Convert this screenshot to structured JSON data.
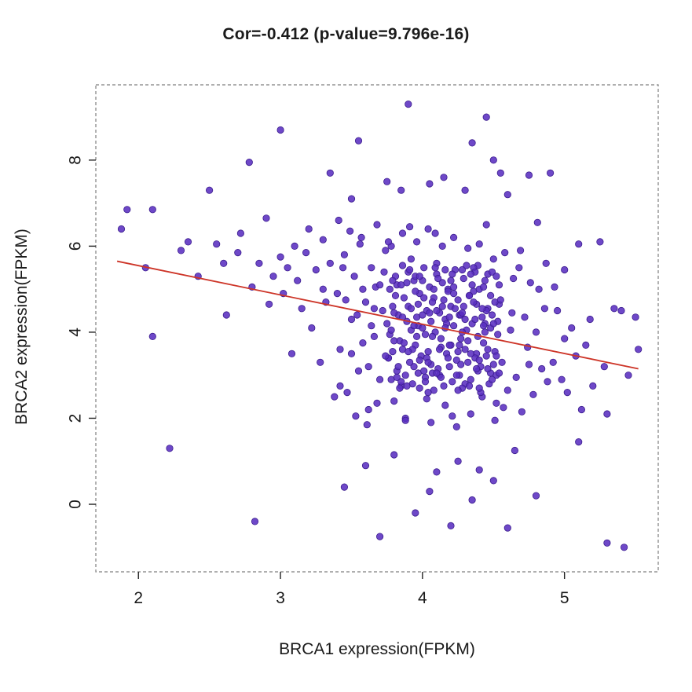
{
  "title": "Cor=-0.412 (p-value=9.796e-16)",
  "chart_data": {
    "type": "scatter",
    "title": "Cor=-0.412 (p-value=9.796e-16)",
    "correlation": -0.412,
    "p_value": "9.796e-16",
    "xlabel": "BRCA1 expression(FPKM)",
    "ylabel": "BRCA2 expression(FPKM)",
    "xlim": [
      1.7,
      5.66
    ],
    "ylim": [
      -1.57,
      9.75
    ],
    "x_ticks": [
      2,
      3,
      4,
      5
    ],
    "y_ticks": [
      0,
      2,
      4,
      6,
      8
    ],
    "grid": false,
    "legend": "none",
    "point_color": "#5a2fc0",
    "point_edge_color": "#3c1d8f",
    "line_color": "#cd3427",
    "regression_line": {
      "x1": 1.85,
      "y1": 5.65,
      "x2": 5.52,
      "y2": 3.15
    },
    "points": [
      [
        1.88,
        6.4
      ],
      [
        1.92,
        6.85
      ],
      [
        2.05,
        5.5
      ],
      [
        2.1,
        6.85
      ],
      [
        2.1,
        3.9
      ],
      [
        2.22,
        1.3
      ],
      [
        2.3,
        5.9
      ],
      [
        2.35,
        6.1
      ],
      [
        2.42,
        5.3
      ],
      [
        2.5,
        7.3
      ],
      [
        2.55,
        6.05
      ],
      [
        2.6,
        5.6
      ],
      [
        2.62,
        4.4
      ],
      [
        2.7,
        5.85
      ],
      [
        2.72,
        6.3
      ],
      [
        2.78,
        7.95
      ],
      [
        2.8,
        5.05
      ],
      [
        2.82,
        -0.4
      ],
      [
        2.85,
        5.6
      ],
      [
        2.9,
        6.65
      ],
      [
        2.92,
        4.65
      ],
      [
        2.95,
        5.3
      ],
      [
        3.0,
        8.7
      ],
      [
        3.0,
        5.75
      ],
      [
        3.02,
        4.9
      ],
      [
        3.05,
        5.5
      ],
      [
        3.08,
        3.5
      ],
      [
        3.1,
        6.0
      ],
      [
        3.12,
        5.2
      ],
      [
        3.15,
        4.55
      ],
      [
        3.18,
        5.85
      ],
      [
        3.2,
        6.4
      ],
      [
        3.22,
        4.1
      ],
      [
        3.25,
        5.45
      ],
      [
        3.28,
        3.3
      ],
      [
        3.3,
        5.0
      ],
      [
        3.3,
        6.15
      ],
      [
        3.32,
        4.7
      ],
      [
        3.35,
        5.6
      ],
      [
        3.38,
        2.5
      ],
      [
        4.92,
        3.3
      ],
      [
        4.95,
        4.5
      ],
      [
        4.98,
        2.9
      ],
      [
        5.0,
        3.85
      ],
      [
        5.0,
        5.45
      ],
      [
        5.02,
        2.6
      ],
      [
        5.05,
        4.1
      ],
      [
        5.08,
        3.45
      ],
      [
        5.1,
        6.05
      ],
      [
        5.12,
        2.2
      ],
      [
        5.15,
        3.7
      ],
      [
        5.18,
        4.3
      ],
      [
        5.2,
        2.75
      ],
      [
        5.25,
        6.1
      ],
      [
        5.28,
        3.2
      ],
      [
        5.3,
        2.1
      ],
      [
        5.35,
        4.55
      ],
      [
        5.4,
        4.5
      ],
      [
        5.45,
        3.0
      ],
      [
        5.5,
        4.35
      ],
      [
        5.52,
        3.6
      ],
      [
        4.9,
        7.7
      ],
      [
        5.3,
        -0.9
      ],
      [
        5.42,
        -1.0
      ],
      [
        5.1,
        1.45
      ],
      [
        3.9,
        9.3
      ],
      [
        4.45,
        9.0
      ],
      [
        3.55,
        8.45
      ],
      [
        4.35,
        8.4
      ],
      [
        3.35,
        7.7
      ],
      [
        4.55,
        7.7
      ],
      [
        4.75,
        7.65
      ],
      [
        3.75,
        7.5
      ],
      [
        4.05,
        7.45
      ],
      [
        4.3,
        7.3
      ],
      [
        3.5,
        7.1
      ],
      [
        4.6,
        7.2
      ],
      [
        4.15,
        7.6
      ],
      [
        3.85,
        7.3
      ],
      [
        4.5,
        8.0
      ],
      [
        3.45,
        0.4
      ],
      [
        3.7,
        -0.75
      ],
      [
        3.95,
        -0.2
      ],
      [
        4.2,
        -0.5
      ],
      [
        4.6,
        -0.55
      ],
      [
        4.05,
        0.3
      ],
      [
        4.35,
        0.1
      ],
      [
        4.5,
        0.55
      ],
      [
        3.6,
        0.9
      ],
      [
        4.1,
        0.75
      ],
      [
        4.8,
        0.2
      ],
      [
        4.25,
        1.0
      ],
      [
        3.8,
        1.15
      ],
      [
        4.65,
        1.25
      ],
      [
        4.4,
        0.8
      ],
      [
        3.4,
        4.9
      ],
      [
        3.42,
        3.6
      ],
      [
        3.45,
        5.8
      ],
      [
        3.47,
        2.6
      ],
      [
        3.5,
        4.3
      ],
      [
        3.52,
        5.3
      ],
      [
        3.55,
        3.1
      ],
      [
        3.57,
        6.2
      ],
      [
        3.6,
        4.7
      ],
      [
        3.62,
        2.2
      ],
      [
        3.64,
        5.5
      ],
      [
        3.66,
        3.9
      ],
      [
        3.68,
        6.5
      ],
      [
        3.7,
        2.9
      ],
      [
        3.72,
        4.5
      ],
      [
        3.74,
        5.9
      ],
      [
        3.76,
        3.4
      ],
      [
        3.78,
        6.0
      ],
      [
        3.8,
        2.4
      ],
      [
        3.82,
        5.1
      ],
      [
        3.84,
        3.8
      ],
      [
        3.86,
        6.3
      ],
      [
        3.88,
        2.0
      ],
      [
        3.9,
        4.6
      ],
      [
        3.92,
        5.7
      ],
      [
        3.94,
        3.2
      ],
      [
        3.96,
        6.1
      ],
      [
        3.98,
        2.7
      ],
      [
        4.0,
        5.2
      ],
      [
        4.02,
        3.95
      ],
      [
        4.04,
        6.4
      ],
      [
        4.06,
        1.9
      ],
      [
        4.08,
        4.8
      ],
      [
        4.1,
        5.6
      ],
      [
        4.12,
        3.0
      ],
      [
        4.14,
        6.0
      ],
      [
        4.16,
        2.3
      ],
      [
        4.18,
        5.0
      ],
      [
        4.2,
        3.7
      ],
      [
        4.22,
        6.2
      ],
      [
        4.24,
        1.8
      ],
      [
        4.26,
        4.4
      ],
      [
        4.28,
        5.45
      ],
      [
        4.3,
        2.8
      ],
      [
        4.32,
        5.95
      ],
      [
        4.34,
        2.1
      ],
      [
        4.36,
        4.95
      ],
      [
        4.38,
        3.5
      ],
      [
        4.4,
        6.05
      ],
      [
        4.42,
        2.5
      ],
      [
        4.44,
        4.2
      ],
      [
        4.46,
        5.35
      ],
      [
        4.48,
        3.05
      ],
      [
        4.5,
        5.7
      ],
      [
        4.52,
        2.35
      ],
      [
        4.54,
        4.65
      ],
      [
        4.56,
        3.3
      ],
      [
        4.58,
        5.85
      ],
      [
        4.6,
        2.65
      ],
      [
        4.62,
        4.05
      ],
      [
        4.64,
        5.25
      ],
      [
        4.66,
        2.95
      ],
      [
        4.68,
        5.5
      ],
      [
        4.7,
        2.15
      ],
      [
        4.72,
        4.35
      ],
      [
        4.74,
        3.65
      ],
      [
        4.76,
        5.15
      ],
      [
        4.78,
        2.55
      ],
      [
        4.8,
        4.0
      ],
      [
        4.82,
        5.0
      ],
      [
        4.84,
        3.15
      ],
      [
        4.86,
        4.55
      ],
      [
        4.88,
        2.85
      ],
      [
        3.41,
        6.6
      ],
      [
        3.53,
        2.05
      ],
      [
        3.67,
        5.05
      ],
      [
        3.79,
        3.55
      ],
      [
        3.91,
        6.45
      ],
      [
        4.03,
        2.45
      ],
      [
        4.15,
        4.75
      ],
      [
        4.27,
        3.85
      ],
      [
        4.39,
        5.55
      ],
      [
        4.51,
        1.95
      ],
      [
        4.63,
        4.45
      ],
      [
        4.75,
        3.25
      ],
      [
        4.87,
        5.6
      ],
      [
        3.49,
        6.35
      ],
      [
        3.61,
        1.85
      ],
      [
        3.73,
        5.4
      ],
      [
        3.85,
        2.75
      ],
      [
        3.97,
        4.15
      ],
      [
        4.09,
        6.3
      ],
      [
        4.21,
        2.05
      ],
      [
        4.33,
        4.85
      ],
      [
        4.45,
        6.5
      ],
      [
        4.57,
        2.25
      ],
      [
        4.69,
        5.9
      ],
      [
        4.81,
        6.55
      ],
      [
        3.58,
        3.75
      ],
      [
        4.93,
        5.05
      ],
      [
        3.75,
        4.2
      ],
      [
        3.76,
        3.4
      ],
      [
        3.77,
        5.0
      ],
      [
        3.78,
        2.9
      ],
      [
        3.79,
        4.6
      ],
      [
        3.8,
        3.8
      ],
      [
        3.81,
        5.3
      ],
      [
        3.82,
        3.1
      ],
      [
        3.83,
        4.4
      ],
      [
        3.84,
        2.7
      ],
      [
        3.85,
        5.1
      ],
      [
        3.86,
        3.6
      ],
      [
        3.87,
        4.8
      ],
      [
        3.88,
        3.0
      ],
      [
        3.89,
        4.25
      ],
      [
        3.9,
        5.4
      ],
      [
        3.91,
        3.3
      ],
      [
        3.92,
        4.55
      ],
      [
        3.93,
        2.8
      ],
      [
        3.94,
        5.2
      ],
      [
        3.95,
        3.7
      ],
      [
        3.96,
        4.35
      ],
      [
        3.97,
        3.05
      ],
      [
        3.98,
        4.9
      ],
      [
        3.99,
        3.45
      ],
      [
        4.0,
        4.1
      ],
      [
        4.01,
        5.5
      ],
      [
        4.02,
        2.95
      ],
      [
        4.03,
        4.5
      ],
      [
        4.04,
        3.55
      ],
      [
        4.05,
        5.05
      ],
      [
        4.06,
        3.25
      ],
      [
        4.07,
        4.7
      ],
      [
        4.08,
        2.65
      ],
      [
        4.09,
        4.0
      ],
      [
        4.1,
        5.35
      ],
      [
        4.11,
        3.15
      ],
      [
        4.12,
        4.45
      ],
      [
        4.13,
        3.65
      ],
      [
        4.14,
        5.15
      ],
      [
        4.15,
        2.75
      ],
      [
        4.16,
        4.3
      ],
      [
        4.17,
        3.5
      ],
      [
        4.18,
        4.95
      ],
      [
        4.19,
        3.2
      ],
      [
        4.2,
        4.6
      ],
      [
        4.21,
        2.85
      ],
      [
        4.22,
        4.15
      ],
      [
        4.23,
        5.45
      ],
      [
        4.24,
        3.35
      ],
      [
        4.25,
        4.75
      ],
      [
        4.26,
        3.0
      ],
      [
        4.27,
        4.4
      ],
      [
        4.28,
        2.7
      ],
      [
        4.29,
        5.25
      ],
      [
        4.3,
        3.6
      ],
      [
        4.31,
        4.05
      ],
      [
        4.32,
        3.3
      ],
      [
        4.33,
        4.85
      ],
      [
        4.34,
        2.9
      ],
      [
        4.35,
        4.2
      ],
      [
        4.36,
        5.5
      ],
      [
        4.37,
        3.4
      ],
      [
        4.38,
        4.65
      ],
      [
        4.39,
        3.1
      ],
      [
        4.4,
        5.0
      ],
      [
        4.41,
        2.6
      ],
      [
        4.42,
        4.35
      ],
      [
        4.43,
        3.75
      ],
      [
        4.44,
        5.2
      ],
      [
        4.45,
        3.45
      ],
      [
        4.46,
        4.55
      ],
      [
        4.47,
        2.8
      ],
      [
        4.48,
        4.1
      ],
      [
        4.49,
        5.4
      ],
      [
        4.5,
        3.25
      ],
      [
        4.51,
        4.7
      ],
      [
        4.52,
        3.0
      ],
      [
        4.53,
        4.25
      ],
      [
        4.54,
        5.1
      ],
      [
        3.8,
        4.45
      ],
      [
        3.83,
        3.2
      ],
      [
        3.86,
        5.55
      ],
      [
        3.89,
        2.75
      ],
      [
        3.92,
        4.05
      ],
      [
        3.95,
        5.3
      ],
      [
        3.98,
        3.35
      ],
      [
        4.01,
        4.8
      ],
      [
        4.04,
        2.6
      ],
      [
        4.07,
        3.9
      ],
      [
        4.1,
        4.5
      ],
      [
        4.13,
        2.95
      ],
      [
        4.16,
        5.45
      ],
      [
        4.19,
        3.7
      ],
      [
        4.22,
        4.9
      ],
      [
        4.25,
        2.65
      ],
      [
        4.28,
        4.0
      ],
      [
        4.31,
        5.55
      ],
      [
        4.34,
        3.5
      ],
      [
        4.37,
        4.3
      ],
      [
        4.4,
        2.7
      ],
      [
        4.43,
        5.05
      ],
      [
        4.46,
        3.15
      ],
      [
        4.49,
        4.4
      ],
      [
        4.52,
        5.3
      ],
      [
        3.77,
        3.95
      ],
      [
        3.81,
        4.85
      ],
      [
        3.85,
        2.85
      ],
      [
        3.89,
        5.15
      ],
      [
        3.93,
        3.6
      ],
      [
        3.97,
        4.65
      ],
      [
        4.01,
        3.1
      ],
      [
        4.05,
        4.45
      ],
      [
        4.09,
        5.5
      ],
      [
        4.13,
        3.85
      ],
      [
        4.17,
        4.2
      ],
      [
        4.21,
        5.35
      ],
      [
        4.25,
        3.55
      ],
      [
        4.29,
        4.6
      ],
      [
        4.33,
        2.75
      ],
      [
        4.37,
        5.4
      ],
      [
        4.41,
        3.2
      ],
      [
        4.45,
        4.5
      ],
      [
        4.49,
        2.9
      ],
      [
        4.53,
        3.95
      ],
      [
        3.79,
        5.2
      ],
      [
        3.87,
        3.75
      ],
      [
        3.95,
        4.95
      ],
      [
        4.03,
        3.4
      ],
      [
        4.11,
        5.25
      ],
      [
        4.19,
        4.35
      ],
      [
        4.27,
        3.25
      ],
      [
        4.35,
        5.1
      ],
      [
        4.43,
        4.15
      ],
      [
        4.51,
        3.55
      ],
      [
        3.91,
        5.45
      ],
      [
        4.07,
        3.05
      ],
      [
        4.23,
        4.55
      ],
      [
        4.39,
        3.9
      ],
      [
        4.55,
        4.75
      ],
      [
        3.96,
        3.9
      ],
      [
        4.0,
        4.4
      ],
      [
        4.04,
        3.3
      ],
      [
        4.08,
        5.0
      ],
      [
        4.12,
        3.6
      ],
      [
        4.16,
        4.1
      ],
      [
        4.2,
        5.2
      ],
      [
        4.24,
        3.0
      ],
      [
        4.28,
        4.45
      ],
      [
        4.32,
        3.8
      ],
      [
        4.36,
        4.7
      ],
      [
        4.4,
        3.35
      ],
      [
        4.44,
        4.0
      ],
      [
        4.48,
        4.85
      ],
      [
        4.52,
        3.45
      ],
      [
        3.98,
        5.3
      ],
      [
        4.02,
        2.85
      ],
      [
        4.06,
        4.25
      ],
      [
        4.1,
        3.05
      ],
      [
        4.14,
        4.6
      ],
      [
        4.18,
        3.4
      ],
      [
        4.22,
        5.05
      ],
      [
        4.26,
        3.7
      ],
      [
        4.3,
        4.3
      ],
      [
        4.34,
        5.35
      ],
      [
        4.38,
        3.15
      ],
      [
        4.42,
        4.55
      ],
      [
        4.46,
        3.6
      ],
      [
        4.5,
        4.2
      ],
      [
        4.54,
        3.05
      ],
      [
        3.94,
        4.15
      ],
      [
        3.9,
        3.55
      ],
      [
        3.86,
        4.35
      ],
      [
        3.82,
        2.95
      ],
      [
        3.78,
        4.05
      ],
      [
        3.74,
        3.45
      ],
      [
        3.7,
        5.1
      ],
      [
        3.66,
        4.55
      ],
      [
        3.62,
        3.2
      ],
      [
        3.58,
        5.0
      ],
      [
        3.54,
        4.4
      ],
      [
        3.5,
        3.5
      ],
      [
        3.46,
        4.75
      ],
      [
        3.42,
        2.75
      ],
      [
        3.44,
        5.5
      ],
      [
        3.56,
        6.05
      ],
      [
        3.68,
        2.35
      ],
      [
        3.76,
        6.1
      ],
      [
        3.88,
        1.95
      ],
      [
        3.64,
        4.15
      ]
    ]
  }
}
